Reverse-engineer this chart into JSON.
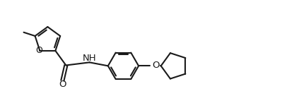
{
  "background_color": "#ffffff",
  "line_color": "#1a1a1a",
  "line_width": 1.5,
  "font_size": 9.5,
  "fig_w": 4.16,
  "fig_h": 1.36,
  "dpi": 100,
  "xlim": [
    0,
    10
  ],
  "ylim": [
    0,
    2.5
  ]
}
